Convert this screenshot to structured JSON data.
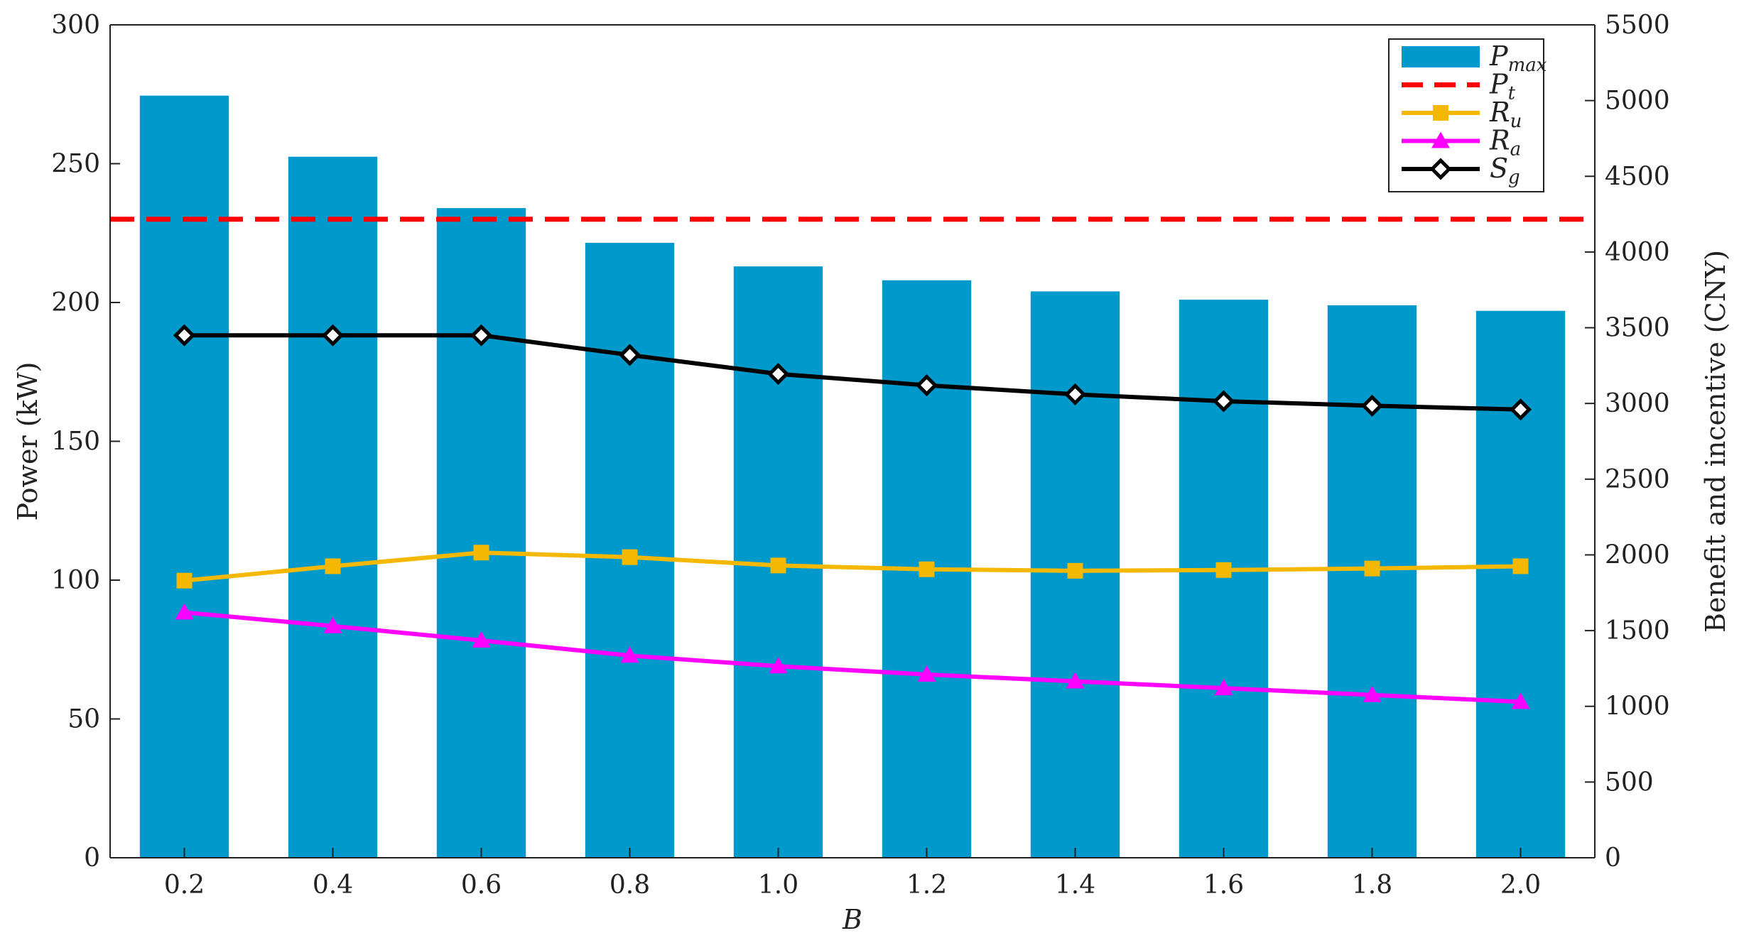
{
  "chart_data": {
    "type": "bar",
    "xlabel": "B",
    "ylabel_left": "Power (kW)",
    "ylabel_right": "Benefit and incentive (CNY)",
    "categories": [
      "0.2",
      "0.4",
      "0.6",
      "0.8",
      "1.0",
      "1.2",
      "1.4",
      "1.6",
      "1.8",
      "2.0"
    ],
    "ylim_left": [
      0,
      300
    ],
    "yticks_left": [
      "0",
      "50",
      "100",
      "150",
      "200",
      "250",
      "300"
    ],
    "ylim_right": [
      0,
      5500
    ],
    "yticks_right": [
      "0",
      "500",
      "1000",
      "1500",
      "2000",
      "2500",
      "3000",
      "3500",
      "4000",
      "4500",
      "5000",
      "5500"
    ],
    "grid": false,
    "legend_position": "top-right",
    "series": [
      {
        "name": "P",
        "subscript": "max",
        "type": "bar",
        "axis": "left",
        "color": "#0099cc",
        "values": [
          274.5,
          252.5,
          234,
          221.5,
          213,
          208,
          204,
          201,
          199,
          197
        ]
      },
      {
        "name": "P",
        "subscript": "t",
        "type": "hline",
        "axis": "left",
        "color": "#ff0000",
        "style": "dashed",
        "value": 230
      },
      {
        "name": "R",
        "subscript": "u",
        "type": "line",
        "axis": "right",
        "color": "#f5b800",
        "marker": "square",
        "values": [
          1830,
          1925,
          2015,
          1985,
          1930,
          1905,
          1895,
          1900,
          1910,
          1925
        ]
      },
      {
        "name": "R",
        "subscript": "a",
        "type": "line",
        "axis": "right",
        "color": "#ff00ff",
        "marker": "triangle",
        "values": [
          1620,
          1530,
          1435,
          1335,
          1265,
          1210,
          1165,
          1120,
          1075,
          1030
        ]
      },
      {
        "name": "S",
        "subscript": "g",
        "type": "line",
        "axis": "right",
        "color": "#000000",
        "marker": "diamond",
        "values": [
          3450,
          3450,
          3450,
          3320,
          3195,
          3120,
          3060,
          3015,
          2985,
          2960
        ]
      }
    ]
  }
}
